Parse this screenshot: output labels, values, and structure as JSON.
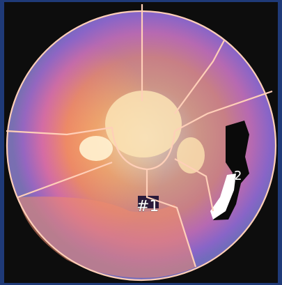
{
  "image": {
    "description_free_labels": {
      "region_label_1": "#1",
      "region_label_2": "2"
    },
    "colors": {
      "frame": "#1f3a78",
      "background": "#0d0d0d",
      "outer_ring": "#8a62c8",
      "mid_ring": "#e06aa6",
      "inner_ring": "#f2a068",
      "core": "#fbe7bf",
      "segment_lines": "#ffcfb8",
      "defect": "#0a0a0a",
      "hot_spot": "#ffffff"
    }
  }
}
